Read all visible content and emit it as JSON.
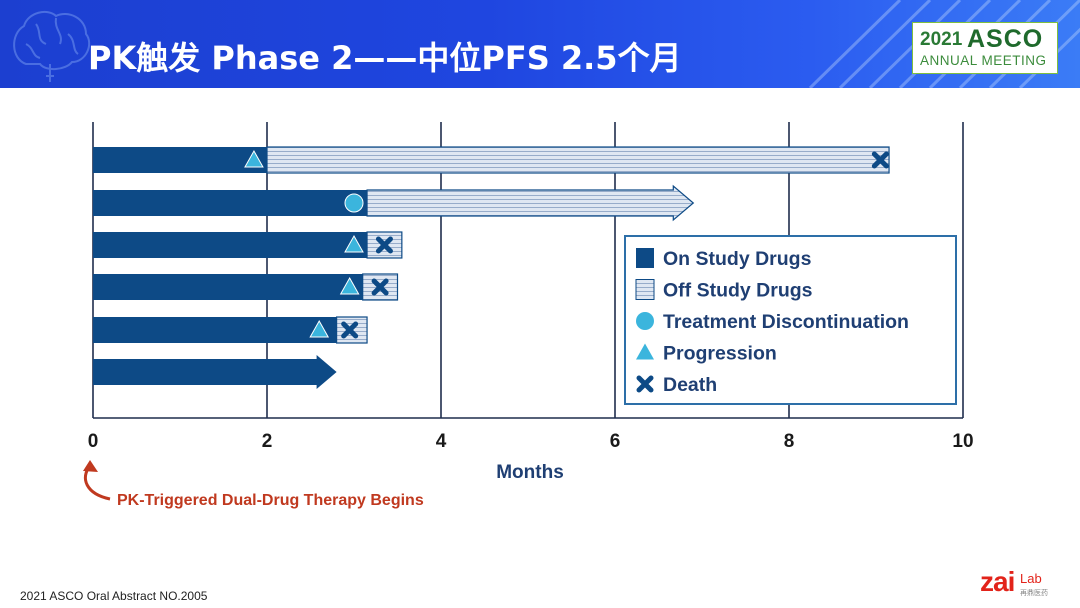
{
  "header": {
    "title": "PK触发 Phase 2——中位PFS 2.5个月"
  },
  "logo": {
    "year": "2021",
    "name": "ASCO",
    "subtitle": "ANNUAL MEETING"
  },
  "footer": {
    "text": "2021 ASCO Oral Abstract NO.2005"
  },
  "brand": {
    "name": "zai",
    "suffix": "Lab",
    "sub": "再鼎医药"
  },
  "colors": {
    "on_study": "#0d4a86",
    "off_study_fill": "#dfe7f2",
    "off_study_line": "#8fa6c6",
    "marker": "#3bb5dd",
    "death": "#0d4a86",
    "axis": "#1f2d4d",
    "annotation": "#c0391f"
  },
  "chart_data": {
    "type": "bar",
    "xlabel": "Months",
    "xlim": [
      0,
      10
    ],
    "xticks": [
      "0",
      "2",
      "4",
      "6",
      "8",
      "10"
    ],
    "grid": true,
    "annotation": "PK-Triggered Dual-Drug Therapy Begins",
    "legend_placement": "right",
    "legend": [
      {
        "label": "On Study Drugs",
        "symbol": "on"
      },
      {
        "label": "Off Study Drugs",
        "symbol": "off"
      },
      {
        "label": "Treatment Discontinuation",
        "symbol": "circle"
      },
      {
        "label": "Progression",
        "symbol": "triangle"
      },
      {
        "label": "Death",
        "symbol": "cross"
      }
    ],
    "patients": [
      {
        "on_end": 2.0,
        "off_end": 9.15,
        "events": [
          {
            "type": "progression",
            "month": 1.85
          },
          {
            "type": "death",
            "month": 9.05
          }
        ],
        "continuing": false
      },
      {
        "on_end": 3.15,
        "off_end": 6.9,
        "events": [
          {
            "type": "discontinuation",
            "month": 3.0
          }
        ],
        "continuing": true
      },
      {
        "on_end": 3.15,
        "off_end": 3.55,
        "events": [
          {
            "type": "progression",
            "month": 3.0
          },
          {
            "type": "death",
            "month": 3.35
          }
        ],
        "continuing": false
      },
      {
        "on_end": 3.1,
        "off_end": 3.5,
        "events": [
          {
            "type": "progression",
            "month": 2.95
          },
          {
            "type": "death",
            "month": 3.3
          }
        ],
        "continuing": false
      },
      {
        "on_end": 2.8,
        "off_end": 3.15,
        "events": [
          {
            "type": "progression",
            "month": 2.6
          },
          {
            "type": "death",
            "month": 2.95
          }
        ],
        "continuing": false
      },
      {
        "on_end": 2.8,
        "off_end": 2.8,
        "events": [],
        "continuing": true
      }
    ]
  }
}
